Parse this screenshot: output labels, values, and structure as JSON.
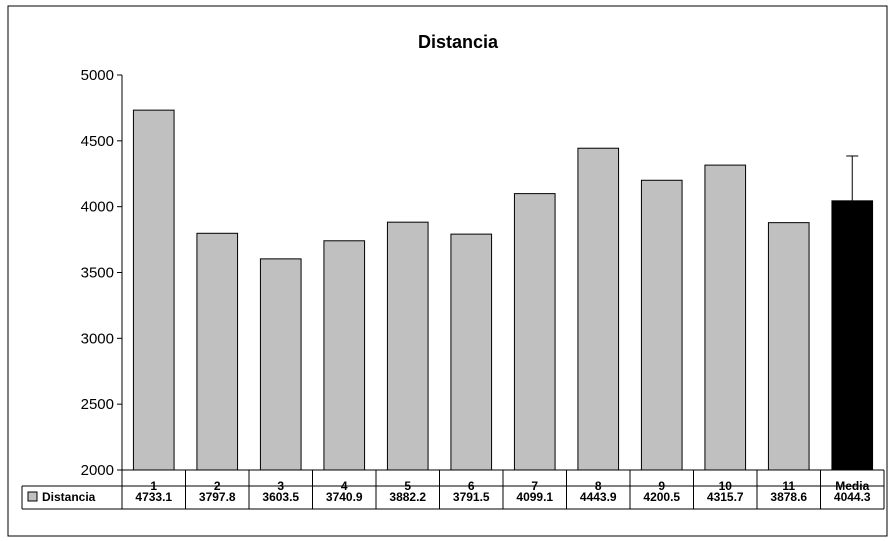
{
  "chart_data": {
    "type": "bar",
    "title": "Distancia",
    "xlabel": "",
    "ylabel": "",
    "ylim": [
      2000,
      5000
    ],
    "yticks": [
      2000,
      2500,
      3000,
      3500,
      4000,
      4500,
      5000
    ],
    "categories": [
      "1",
      "2",
      "3",
      "4",
      "5",
      "6",
      "7",
      "8",
      "9",
      "10",
      "11",
      "Media"
    ],
    "series": [
      {
        "name": "Distancia",
        "values": [
          4733.1,
          3797.8,
          3603.5,
          3740.9,
          3882.2,
          3791.5,
          4099.1,
          4443.9,
          4200.5,
          4315.7,
          3878.6,
          4044.3
        ],
        "value_labels": [
          "4733.1",
          "3797.8",
          "3603.5",
          "3740.9",
          "3882.2",
          "3791.5",
          "4099.1",
          "4443.9",
          "4200.5",
          "4315.7",
          "3878.6",
          "4044.3"
        ]
      }
    ],
    "error_bar": {
      "category": "Media",
      "upper": 4385
    },
    "grid": false,
    "legend": "data-table",
    "colors": {
      "bars": "#c0c0c0",
      "media_bar": "#000000",
      "outline": "#000000"
    }
  }
}
